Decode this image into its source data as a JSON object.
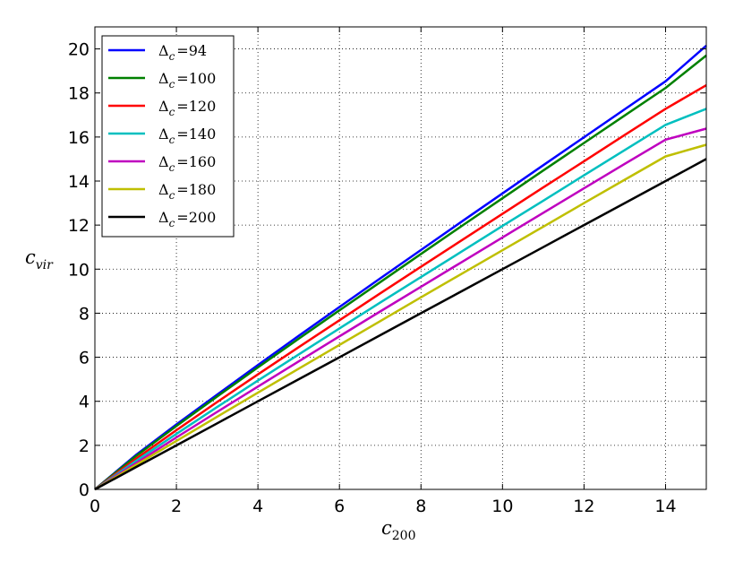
{
  "chart_data": {
    "type": "line",
    "xlabel_main": "c",
    "xlabel_sub": "200",
    "ylabel_main": "c",
    "ylabel_sub": "vir",
    "xlim": [
      0,
      15
    ],
    "ylim": [
      0,
      21
    ],
    "xticks": [
      "0",
      "2",
      "4",
      "6",
      "8",
      "10",
      "12",
      "14"
    ],
    "yticks": [
      "0",
      "2",
      "4",
      "6",
      "8",
      "10",
      "12",
      "14",
      "16",
      "18",
      "20"
    ],
    "grid": true,
    "legend_position": "top-left",
    "x": [
      0,
      1,
      2,
      3,
      4,
      5,
      6,
      7,
      8,
      9,
      10,
      11,
      12,
      13,
      14,
      15
    ],
    "series": [
      {
        "legend_prefix": "Δ",
        "legend_sub": "c",
        "legend_suffix": "=94",
        "color": "#0000ff",
        "values": [
          0,
          1.55,
          2.95,
          4.3,
          5.65,
          6.97,
          8.28,
          9.58,
          10.87,
          12.16,
          13.44,
          14.72,
          15.99,
          17.26,
          18.53,
          20.15
        ]
      },
      {
        "legend_prefix": "Δ",
        "legend_sub": "c",
        "legend_suffix": "=100",
        "color": "#008000",
        "values": [
          0,
          1.5,
          2.88,
          4.22,
          5.54,
          6.84,
          8.13,
          9.41,
          10.69,
          11.96,
          13.22,
          14.48,
          15.73,
          16.98,
          18.23,
          19.7
        ]
      },
      {
        "legend_prefix": "Δ",
        "legend_sub": "c",
        "legend_suffix": "=120",
        "color": "#ff0000",
        "values": [
          0,
          1.38,
          2.69,
          3.97,
          5.22,
          6.46,
          7.68,
          8.9,
          10.11,
          11.31,
          12.51,
          13.71,
          14.9,
          16.09,
          17.28,
          18.35
        ]
      },
      {
        "legend_prefix": "Δ",
        "legend_sub": "c",
        "legend_suffix": "=140",
        "color": "#00bfbf",
        "values": [
          0,
          1.28,
          2.52,
          3.74,
          4.94,
          6.13,
          7.31,
          8.48,
          9.64,
          10.8,
          11.96,
          13.11,
          14.26,
          15.41,
          16.55,
          17.28
        ]
      },
      {
        "legend_prefix": "Δ",
        "legend_sub": "c",
        "legend_suffix": "=160",
        "color": "#bf00bf",
        "values": [
          0,
          1.18,
          2.36,
          3.52,
          4.67,
          5.81,
          6.95,
          8.08,
          9.2,
          10.32,
          11.44,
          12.56,
          13.67,
          14.78,
          15.88,
          16.38
        ]
      },
      {
        "legend_prefix": "Δ",
        "legend_sub": "c",
        "legend_suffix": "=180",
        "color": "#bfbf00",
        "values": [
          0,
          1.1,
          2.2,
          3.3,
          4.39,
          5.48,
          6.56,
          7.64,
          8.72,
          9.79,
          10.86,
          11.93,
          13.0,
          14.06,
          15.12,
          15.65
        ]
      },
      {
        "legend_prefix": "Δ",
        "legend_sub": "c",
        "legend_suffix": "=200",
        "color": "#000000",
        "values": [
          0,
          1.0,
          2.0,
          3.0,
          4.0,
          5.0,
          6.0,
          7.0,
          8.0,
          9.0,
          10.0,
          11.0,
          12.0,
          13.0,
          14.0,
          15.0
        ]
      }
    ]
  }
}
